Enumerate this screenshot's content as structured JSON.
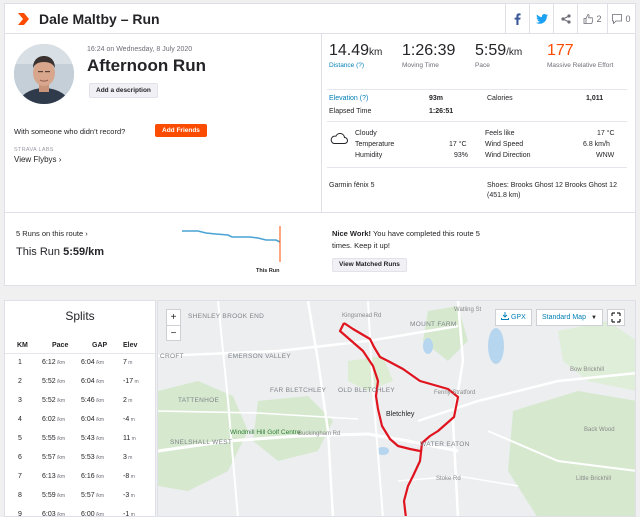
{
  "header": {
    "title": "Dale Maltby – Run",
    "kudos_count": "2",
    "comment_count": "0"
  },
  "activity": {
    "datetime": "16:24 on Wednesday, 8 July 2020",
    "title": "Afternoon Run",
    "add_description": "Add a description",
    "with_someone": "With someone who didn’t record?",
    "add_friends": "Add Friends",
    "strava_labs": "STRAVA LABS",
    "view_flybys": "View Flybys ›"
  },
  "stats": {
    "distance": {
      "value": "14.49",
      "unit": "km",
      "label": "Distance (?)"
    },
    "moving_time": {
      "value": "1:26:39",
      "label": "Moving Time"
    },
    "pace": {
      "value": "5:59",
      "unit": "/km",
      "label": "Pace"
    },
    "relative_effort": {
      "value": "177",
      "label": "Massive Relative Effort"
    },
    "elevation": {
      "label": "Elevation (?)",
      "value": "93m"
    },
    "calories": {
      "label": "Calories",
      "value": "1,011"
    },
    "elapsed_time": {
      "label": "Elapsed Time",
      "value": "1:26:51"
    }
  },
  "weather": {
    "condition": "Cloudy",
    "temperature_label": "Temperature",
    "temperature": "17 °C",
    "humidity_label": "Humidity",
    "humidity": "93%",
    "feels_like_label": "Feels like",
    "feels_like": "17 °C",
    "wind_speed_label": "Wind Speed",
    "wind_speed": "6.8 km/h",
    "wind_direction_label": "Wind Direction",
    "wind_direction": "WNW"
  },
  "gear": {
    "device": "Garmin fēnix 5",
    "shoes": "Shoes: Brooks Ghost 12 Brooks Ghost 12",
    "shoes_distance": "(451.8 km)"
  },
  "route": {
    "runs_on_route": "5 Runs on this route ›",
    "this_run_prefix": "This Run",
    "this_run_pace": "5:59/km",
    "chart_label": "This Run",
    "nice_work_bold": "Nice Work!",
    "nice_work_text": " You have completed this route 5 times. Keep it up!",
    "view_matched": "View Matched Runs"
  },
  "splits": {
    "title": "Splits",
    "headers": [
      "KM",
      "Pace",
      "GAP",
      "Elev"
    ],
    "rows": [
      {
        "km": "1",
        "pace": "6:12",
        "gap": "6:04",
        "elev": "7"
      },
      {
        "km": "2",
        "pace": "5:52",
        "gap": "6:04",
        "elev": "-17"
      },
      {
        "km": "3",
        "pace": "5:52",
        "gap": "5:46",
        "elev": "2"
      },
      {
        "km": "4",
        "pace": "6:02",
        "gap": "6:04",
        "elev": "-4"
      },
      {
        "km": "5",
        "pace": "5:55",
        "gap": "5:43",
        "elev": "11"
      },
      {
        "km": "6",
        "pace": "5:57",
        "gap": "5:53",
        "elev": "3"
      },
      {
        "km": "7",
        "pace": "6:13",
        "gap": "6:16",
        "elev": "-8"
      },
      {
        "km": "8",
        "pace": "5:59",
        "gap": "5:57",
        "elev": "-3"
      },
      {
        "km": "9",
        "pace": "6:03",
        "gap": "6:00",
        "elev": "-1"
      }
    ],
    "pace_unit": "/km",
    "elev_unit": "m"
  },
  "map": {
    "gpx": "GPX",
    "map_type": "Standard Map",
    "labels": {
      "shenley_brook_end": "SHENLEY BROOK END",
      "mount_farm": "MOUNT FARM",
      "emerson_valley": "EMERSON VALLEY",
      "croft": "CROFT",
      "tattenhoe": "TATTENHOE",
      "far_bletchley": "FAR BLETCHLEY",
      "old_bletchley": "OLD BLETCHLEY",
      "bletchley": "Bletchley",
      "fenny_stratford": "Fenny Stratford",
      "water_eaton": "WATER EATON",
      "snelshall_west": "SNELSHALL WEST",
      "windmill_hill": "Windmill Hill Golf Centre",
      "buckingham_rd": "Buckingham Rd",
      "stoke_rd": "Stoke Rd",
      "bow_brickhill": "Bow Brickhill",
      "back_wood": "Back Wood",
      "little_brickhill": "Little Brickhill",
      "kingsmead": "Kingsmead Rd",
      "watling_st": "Watling St"
    }
  },
  "colors": {
    "accent": "#fc4c02",
    "link": "#007fb6",
    "route": "#e0141f"
  }
}
